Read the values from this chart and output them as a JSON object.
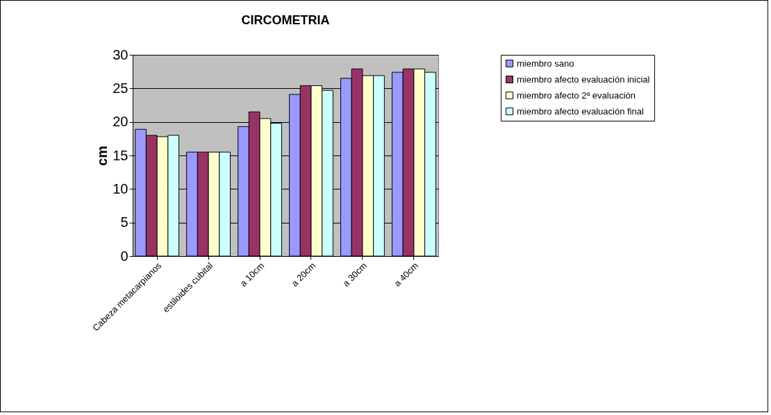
{
  "chart_data": {
    "type": "bar",
    "title": "CIRCOMETRIA",
    "ylabel": "cm",
    "categories": [
      "Cabeza metacarpianos",
      "estiloides cubital",
      "a 10cm",
      "a 20cm",
      "a 30cm",
      "a 40cm"
    ],
    "series": [
      {
        "name": "miembro sano",
        "color": "#9999ff",
        "values": [
          18.9,
          15.5,
          19.3,
          24.1,
          26.5,
          27.4
        ]
      },
      {
        "name": "miembro afecto evaluación inicial",
        "color": "#993366",
        "values": [
          18.0,
          15.5,
          21.5,
          25.4,
          27.9,
          27.9
        ]
      },
      {
        "name": "miembro afecto 2ª evaluación",
        "color": "#ffffcc",
        "values": [
          17.8,
          15.5,
          20.5,
          25.4,
          26.9,
          27.9
        ]
      },
      {
        "name": "miembro afecto evaluación final",
        "color": "#ccffff",
        "values": [
          18.0,
          15.5,
          19.8,
          24.7,
          26.9,
          27.4
        ]
      }
    ],
    "ylim": [
      0,
      30
    ],
    "yticks": [
      0,
      5,
      10,
      15,
      20,
      25,
      30
    ],
    "grid": "y",
    "legend": "right"
  }
}
